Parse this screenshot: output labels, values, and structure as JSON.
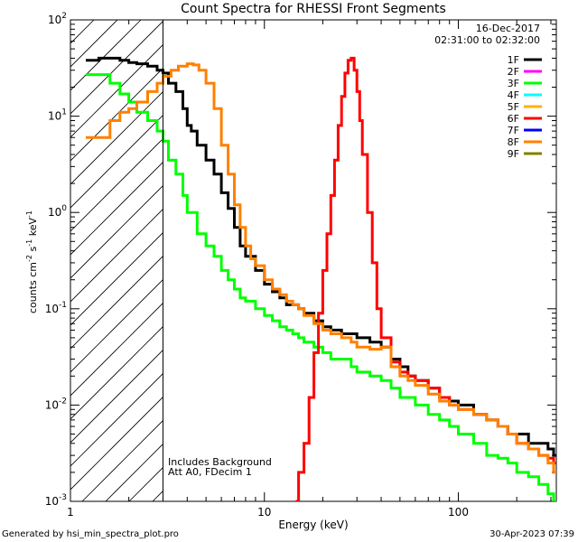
{
  "chart_data": {
    "type": "line",
    "title": "Count Spectra for RHESSI Front Segments",
    "xlabel": "Energy (keV)",
    "ylabel": "counts cm",
    "ylabel_sup1": "-2",
    "ylabel_mid": " s",
    "ylabel_sup2": "-1",
    "ylabel_mid2": " keV",
    "ylabel_sup3": "-1",
    "xscale": "log",
    "yscale": "log",
    "xlim": [
      1,
      320
    ],
    "ylim": [
      0.001,
      100
    ],
    "x_ticks": [
      {
        "value": 1,
        "label": "1"
      },
      {
        "value": 10,
        "label": "10"
      },
      {
        "value": 100,
        "label": "100"
      }
    ],
    "y_ticks": [
      {
        "value": 0.001,
        "base": "10",
        "exp": "-3"
      },
      {
        "value": 0.01,
        "base": "10",
        "exp": "-2"
      },
      {
        "value": 0.1,
        "base": "10",
        "exp": "-1"
      },
      {
        "value": 1,
        "base": "10",
        "exp": "0"
      },
      {
        "value": 10,
        "base": "10",
        "exp": "1"
      },
      {
        "value": 100,
        "base": "10",
        "exp": "2"
      }
    ],
    "hatched_region": {
      "x_min": 1,
      "x_max": 3
    },
    "date": "16-Dec-2017",
    "time_range": "02:31:00 to 02:32:00",
    "legend": [
      {
        "name": "1F",
        "color": "#000000"
      },
      {
        "name": "2F",
        "color": "#ff00ff"
      },
      {
        "name": "3F",
        "color": "#00ff00"
      },
      {
        "name": "4F",
        "color": "#00ffff"
      },
      {
        "name": "5F",
        "color": "#ffb000"
      },
      {
        "name": "6F",
        "color": "#ff0000"
      },
      {
        "name": "7F",
        "color": "#0000ff"
      },
      {
        "name": "8F",
        "color": "#ff8000"
      },
      {
        "name": "9F",
        "color": "#808000"
      }
    ],
    "annotations": [
      "Includes Background",
      "Att A0, FDecim 1"
    ],
    "series": [
      {
        "name": "1F",
        "color": "#000000",
        "x": [
          1.2,
          1.4,
          1.6,
          1.8,
          2.0,
          2.2,
          2.5,
          2.8,
          3.0,
          3.2,
          3.5,
          3.8,
          4.0,
          4.2,
          4.5,
          5.0,
          5.5,
          6.0,
          6.5,
          7.0,
          7.5,
          8.0,
          9.0,
          10.0,
          11.0,
          12.0,
          13.0,
          14.0,
          15.0,
          16.0,
          17.0,
          18.0,
          20.0,
          22.0,
          25.0,
          28.0,
          30.0,
          35.0,
          40.0,
          45.0,
          50.0,
          55.0,
          60.0,
          70.0,
          80.0,
          90.0,
          100.0,
          120.0,
          140.0,
          160.0,
          180.0,
          200.0,
          230.0,
          260.0,
          290.0,
          310.0
        ],
        "y": [
          38,
          40,
          40,
          38,
          36,
          35,
          33,
          30,
          28,
          22,
          18,
          12,
          8,
          7,
          5,
          3.5,
          2.5,
          1.6,
          1.1,
          0.7,
          0.45,
          0.35,
          0.25,
          0.18,
          0.15,
          0.13,
          0.11,
          0.11,
          0.1,
          0.09,
          0.09,
          0.075,
          0.065,
          0.06,
          0.055,
          0.055,
          0.05,
          0.045,
          0.04,
          0.03,
          0.025,
          0.02,
          0.018,
          0.015,
          0.012,
          0.011,
          0.01,
          0.008,
          0.007,
          0.006,
          0.005,
          0.005,
          0.004,
          0.004,
          0.0035,
          0.003
        ]
      },
      {
        "name": "3F",
        "color": "#00ff00",
        "x": [
          1.2,
          1.4,
          1.6,
          1.8,
          2.0,
          2.2,
          2.5,
          2.8,
          3.0,
          3.2,
          3.5,
          3.8,
          4.0,
          4.5,
          5.0,
          5.5,
          6.0,
          6.5,
          7.0,
          7.5,
          8.0,
          9.0,
          10.0,
          11.0,
          12.0,
          13.0,
          14.0,
          15.0,
          16.0,
          18.0,
          20.0,
          22.0,
          25.0,
          28.0,
          30.0,
          35.0,
          40.0,
          45.0,
          50.0,
          60.0,
          70.0,
          80.0,
          90.0,
          100.0,
          120.0,
          140.0,
          160.0,
          180.0,
          200.0,
          230.0,
          260.0,
          290.0,
          310.0
        ],
        "y": [
          27,
          27,
          22,
          17,
          14,
          11,
          9,
          7,
          5.5,
          3.5,
          2.5,
          1.5,
          1.0,
          0.6,
          0.45,
          0.35,
          0.25,
          0.2,
          0.16,
          0.13,
          0.12,
          0.1,
          0.085,
          0.075,
          0.065,
          0.06,
          0.055,
          0.05,
          0.045,
          0.04,
          0.035,
          0.03,
          0.03,
          0.025,
          0.022,
          0.02,
          0.018,
          0.015,
          0.012,
          0.01,
          0.008,
          0.007,
          0.006,
          0.005,
          0.004,
          0.003,
          0.0028,
          0.0025,
          0.002,
          0.0018,
          0.0015,
          0.0012,
          0.001
        ]
      },
      {
        "name": "6F",
        "color": "#ff0000",
        "x": [
          14.5,
          15.0,
          16.0,
          17.0,
          18.0,
          19.0,
          20.0,
          21.0,
          22.0,
          23.0,
          24.0,
          25.0,
          26.0,
          27.0,
          28.0,
          29.0,
          30.0,
          31.0,
          32.0,
          34.0,
          36.0,
          38.0,
          40.0,
          45.0,
          50.0,
          55.0,
          60.0,
          70.0,
          80.0,
          90.0,
          100.0,
          120.0,
          140.0,
          160.0,
          180.0,
          200.0,
          230.0,
          260.0,
          290.0,
          310.0
        ],
        "y": [
          0.001,
          0.002,
          0.004,
          0.012,
          0.035,
          0.09,
          0.25,
          0.6,
          1.5,
          3.5,
          8,
          16,
          28,
          38,
          40,
          30,
          18,
          9,
          4,
          1,
          0.3,
          0.1,
          0.05,
          0.028,
          0.022,
          0.02,
          0.018,
          0.015,
          0.012,
          0.01,
          0.009,
          0.008,
          0.007,
          0.006,
          0.005,
          0.004,
          0.0035,
          0.003,
          0.0028,
          0.0025
        ]
      },
      {
        "name": "8F",
        "color": "#ff8000",
        "x": [
          1.2,
          1.4,
          1.6,
          1.8,
          2.0,
          2.2,
          2.5,
          2.8,
          3.0,
          3.3,
          3.6,
          4.0,
          4.3,
          4.6,
          5.0,
          5.5,
          6.0,
          6.5,
          7.0,
          7.5,
          8.0,
          8.5,
          9.0,
          10.0,
          11.0,
          12.0,
          13.0,
          14.0,
          15.0,
          16.0,
          18.0,
          20.0,
          22.0,
          25.0,
          28.0,
          30.0,
          35.0,
          40.0,
          45.0,
          50.0,
          55.0,
          60.0,
          70.0,
          80.0,
          90.0,
          100.0,
          120.0,
          140.0,
          160.0,
          180.0,
          200.0,
          230.0,
          260.0,
          290.0,
          310.0
        ],
        "y": [
          6,
          6,
          9,
          11,
          12,
          14,
          18,
          22,
          26,
          30,
          33,
          35,
          34,
          30,
          22,
          12,
          5,
          2.5,
          1.2,
          0.7,
          0.45,
          0.33,
          0.28,
          0.2,
          0.16,
          0.14,
          0.12,
          0.11,
          0.1,
          0.085,
          0.07,
          0.06,
          0.055,
          0.05,
          0.045,
          0.04,
          0.038,
          0.04,
          0.025,
          0.02,
          0.018,
          0.016,
          0.013,
          0.011,
          0.01,
          0.009,
          0.008,
          0.007,
          0.006,
          0.005,
          0.004,
          0.0035,
          0.003,
          0.0025,
          0.002
        ]
      }
    ]
  },
  "footer": {
    "generator": "Generated by hsi_min_spectra_plot.pro",
    "timestamp": "30-Apr-2023 07:39"
  }
}
